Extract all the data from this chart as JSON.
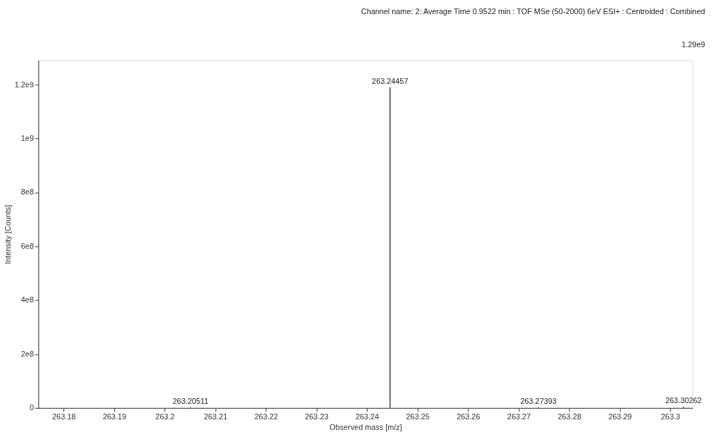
{
  "chart_data": {
    "type": "bar",
    "title": "Channel name: 2: Average Time 0.9522 min : TOF MSe (50-2000) 6eV ESI+ : Centroided : Combined",
    "xlabel": "Observed mass [m/z]",
    "ylabel": "Intensity [Counts]",
    "x": [
      263.20511,
      263.24457,
      263.27393,
      263.30262
    ],
    "values": [
      3000000,
      1190000000,
      3000000,
      5000000
    ],
    "color": "#404040",
    "xlim": [
      263.175,
      263.3044
    ],
    "xticks": [
      263.18,
      263.19,
      263.2,
      263.21,
      263.22,
      263.23,
      263.24,
      263.25,
      263.26,
      263.27,
      263.28,
      263.29,
      263.3
    ],
    "ylim": [
      0,
      1290000000
    ],
    "yticks": [
      0,
      {
        "value": 200000000,
        "label": "2e8"
      },
      {
        "value": 400000000,
        "label": "4e8"
      },
      {
        "value": 600000000,
        "label": "6e8"
      },
      {
        "value": 800000000,
        "label": "8e8"
      },
      {
        "value": 1000000000,
        "label": "1e9"
      },
      {
        "value": 1200000000,
        "label": "1.2e9"
      }
    ],
    "annotations": [
      {
        "text": "263.20511",
        "x": 263.20511,
        "y": 3000000
      },
      {
        "text": "263.24457",
        "x": 263.24457,
        "y": 1190000000
      },
      {
        "text": "263.27393",
        "x": 263.27393,
        "y": 3000000
      },
      {
        "text": "263.30262",
        "x": 263.30262,
        "y": 5000000
      },
      "1.29e9"
    ],
    "grid": false
  }
}
